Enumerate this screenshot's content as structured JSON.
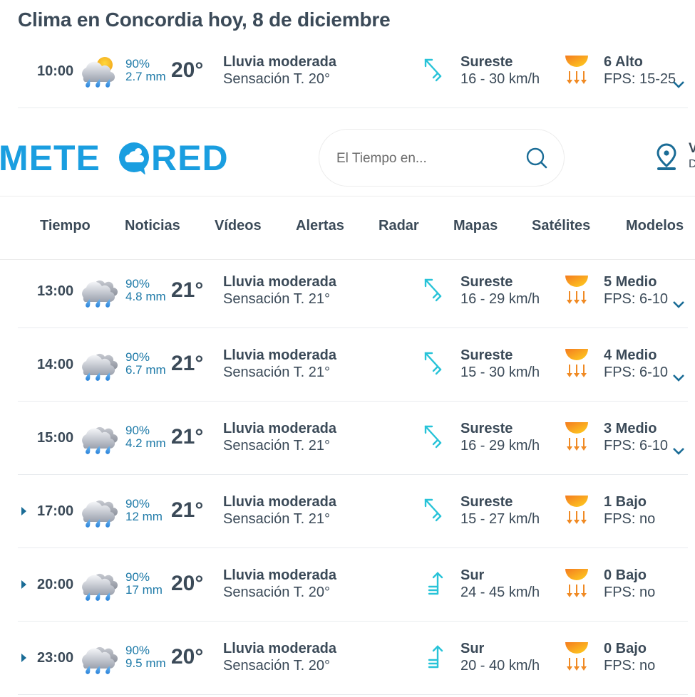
{
  "page": {
    "title": "Clima en Concordia hoy, 8 de diciembre"
  },
  "header": {
    "logo_text": "METEORED",
    "search": {
      "placeholder": "El Tiempo en..."
    },
    "location": {
      "line1": "V",
      "line2": "D"
    },
    "colors": {
      "brand": "#1a9ee0",
      "accent": "#1a6c96"
    }
  },
  "nav": {
    "items": [
      {
        "label": "Tiempo"
      },
      {
        "label": "Noticias"
      },
      {
        "label": "Vídeos"
      },
      {
        "label": "Alertas"
      },
      {
        "label": "Radar"
      },
      {
        "label": "Mapas"
      },
      {
        "label": "Satélites"
      },
      {
        "label": "Modelos"
      }
    ]
  },
  "hours": [
    {
      "time": "10:00",
      "icon": "cloud-sun-rain-icon",
      "prob": "90%",
      "mm": "2.7 mm",
      "temp": "20°",
      "desc": "Lluvia moderada",
      "feel": "Sensación T. 20°",
      "wind_icon": "wind-arrow-southeast-icon",
      "wind_dir": "Sureste",
      "wind_speed": "16 - 30 km/h",
      "uv": "6 Alto",
      "fps": "FPS: 15-25",
      "expandable": false,
      "chevron": true
    },
    {
      "time": "13:00",
      "icon": "cloud-rain-icon",
      "prob": "90%",
      "mm": "4.8 mm",
      "temp": "21°",
      "desc": "Lluvia moderada",
      "feel": "Sensación T. 21°",
      "wind_icon": "wind-arrow-southeast-icon",
      "wind_dir": "Sureste",
      "wind_speed": "16 - 29 km/h",
      "uv": "5 Medio",
      "fps": "FPS: 6-10",
      "expandable": false,
      "chevron": true
    },
    {
      "time": "14:00",
      "icon": "cloud-rain-icon",
      "prob": "90%",
      "mm": "6.7 mm",
      "temp": "21°",
      "desc": "Lluvia moderada",
      "feel": "Sensación T. 21°",
      "wind_icon": "wind-arrow-southeast-icon",
      "wind_dir": "Sureste",
      "wind_speed": "15 - 30 km/h",
      "uv": "4 Medio",
      "fps": "FPS: 6-10",
      "expandable": false,
      "chevron": true
    },
    {
      "time": "15:00",
      "icon": "cloud-rain-icon",
      "prob": "90%",
      "mm": "4.2 mm",
      "temp": "21°",
      "desc": "Lluvia moderada",
      "feel": "Sensación T. 21°",
      "wind_icon": "wind-arrow-southeast-icon",
      "wind_dir": "Sureste",
      "wind_speed": "16 - 29 km/h",
      "uv": "3 Medio",
      "fps": "FPS: 6-10",
      "expandable": false,
      "chevron": true
    },
    {
      "time": "17:00",
      "icon": "cloud-rain-icon",
      "prob": "90%",
      "mm": "12 mm",
      "temp": "21°",
      "desc": "Lluvia moderada",
      "feel": "Sensación T. 21°",
      "wind_icon": "wind-arrow-southeast-icon",
      "wind_dir": "Sureste",
      "wind_speed": "15 - 27 km/h",
      "uv": "1 Bajo",
      "fps": "FPS: no",
      "expandable": true,
      "chevron": false
    },
    {
      "time": "20:00",
      "icon": "cloud-rain-icon",
      "prob": "90%",
      "mm": "17 mm",
      "temp": "20°",
      "desc": "Lluvia moderada",
      "feel": "Sensación T. 20°",
      "wind_icon": "wind-arrow-south-icon",
      "wind_dir": "Sur",
      "wind_speed": "24 - 45 km/h",
      "uv": "0 Bajo",
      "fps": "FPS: no",
      "expandable": true,
      "chevron": false
    },
    {
      "time": "23:00",
      "icon": "cloud-rain-icon",
      "prob": "90%",
      "mm": "9.5 mm",
      "temp": "20°",
      "desc": "Lluvia moderada",
      "feel": "Sensación T. 20°",
      "wind_icon": "wind-arrow-south-icon",
      "wind_dir": "Sur",
      "wind_speed": "20 - 40 km/h",
      "uv": "0 Bajo",
      "fps": "FPS: no",
      "expandable": true,
      "chevron": false
    }
  ]
}
